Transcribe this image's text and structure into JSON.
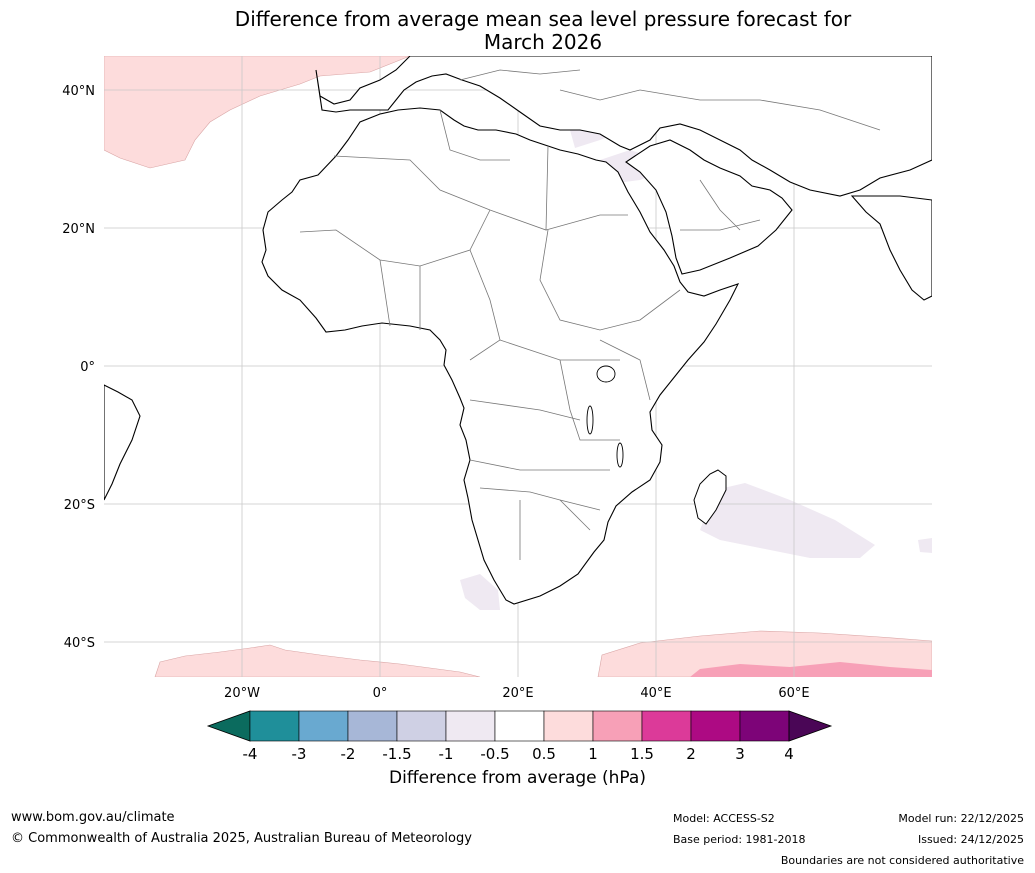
{
  "title": {
    "line1": "Difference from average mean sea level pressure forecast for",
    "line2": "March 2026"
  },
  "map": {
    "lat_labels": [
      "40°N",
      "20°N",
      "0°",
      "20°S",
      "40°S"
    ],
    "lon_labels": [
      "20°W",
      "0°",
      "20°E",
      "40°E",
      "60°E"
    ],
    "ocean_color": "#ffffff",
    "land_color": "#ffffff",
    "coast_color": "#000000",
    "border_color": "#777777",
    "grid_color": "#c8c8c8"
  },
  "colorbar": {
    "title": "Difference from average (hPa)",
    "ticks": [
      "-4",
      "-3",
      "-2",
      "-1.5",
      "-1",
      "-0.5",
      "0.5",
      "1",
      "1.5",
      "2",
      "3",
      "4"
    ],
    "colors": [
      "#0b6b5e",
      "#1f8f9a",
      "#69a9d0",
      "#a7b7d7",
      "#cfd0e4",
      "#efe9f2",
      "#ffffff",
      "#fddcdc",
      "#f7a0b7",
      "#dc3a99",
      "#ad0a83",
      "#7d0478",
      "#4a0656"
    ]
  },
  "footer": {
    "website": "www.bom.gov.au/climate",
    "copyright": "© Commonwealth of Australia 2025, Australian Bureau of Meteorology",
    "model": "Model: ACCESS-S2",
    "base_period": "Base period: 1981-2018",
    "model_run": "Model run: 22/12/2025",
    "issued": "Issued: 24/12/2025",
    "disclaimer": "Boundaries are not considered authoritative"
  }
}
